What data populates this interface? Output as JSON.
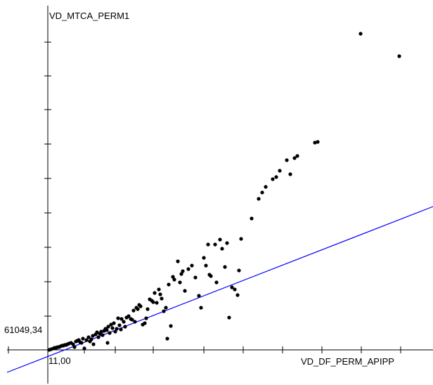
{
  "chart_data": {
    "type": "scatter",
    "xlabel": "VD_DF_PERM_APIPP",
    "ylabel": "VD_MTCA_PERM1",
    "x_origin_label": "11,00",
    "y_origin_label": "61049,34",
    "regression_line": true,
    "grid": false,
    "colors": {
      "points": "#000000",
      "regression": "#0000ff",
      "axes": "#000000"
    },
    "points": [
      [
        2,
        0
      ],
      [
        5,
        1
      ],
      [
        8,
        2
      ],
      [
        10,
        3
      ],
      [
        12,
        3
      ],
      [
        14,
        4
      ],
      [
        16,
        4
      ],
      [
        18,
        5
      ],
      [
        20,
        6
      ],
      [
        22,
        6
      ],
      [
        24,
        7
      ],
      [
        26,
        7
      ],
      [
        28,
        8
      ],
      [
        30,
        9
      ],
      [
        33,
        10
      ],
      [
        36,
        8
      ],
      [
        38,
        4
      ],
      [
        40,
        12
      ],
      [
        42,
        13
      ],
      [
        44,
        14
      ],
      [
        46,
        11
      ],
      [
        48,
        10
      ],
      [
        50,
        16
      ],
      [
        52,
        2
      ],
      [
        55,
        14
      ],
      [
        58,
        18
      ],
      [
        60,
        12
      ],
      [
        62,
        15
      ],
      [
        64,
        20
      ],
      [
        65,
        8
      ],
      [
        68,
        22
      ],
      [
        70,
        25
      ],
      [
        72,
        18
      ],
      [
        74,
        23
      ],
      [
        76,
        26
      ],
      [
        78,
        21
      ],
      [
        80,
        27
      ],
      [
        82,
        30
      ],
      [
        84,
        28
      ],
      [
        85,
        10
      ],
      [
        86,
        33
      ],
      [
        88,
        24
      ],
      [
        90,
        36
      ],
      [
        92,
        31
      ],
      [
        94,
        38
      ],
      [
        96,
        26
      ],
      [
        98,
        30
      ],
      [
        100,
        45
      ],
      [
        102,
        35
      ],
      [
        104,
        29
      ],
      [
        105,
        44
      ],
      [
        108,
        40
      ],
      [
        110,
        33
      ],
      [
        112,
        46
      ],
      [
        115,
        48
      ],
      [
        118,
        44
      ],
      [
        120,
        43
      ],
      [
        122,
        56
      ],
      [
        124,
        40
      ],
      [
        126,
        60
      ],
      [
        128,
        58
      ],
      [
        130,
        64
      ],
      [
        132,
        62
      ],
      [
        135,
        36
      ],
      [
        138,
        38
      ],
      [
        140,
        45
      ],
      [
        142,
        58
      ],
      [
        145,
        72
      ],
      [
        148,
        70
      ],
      [
        150,
        68
      ],
      [
        152,
        81
      ],
      [
        155,
        67
      ],
      [
        158,
        86
      ],
      [
        160,
        79
      ],
      [
        162,
        73
      ],
      [
        165,
        55
      ],
      [
        168,
        60
      ],
      [
        170,
        16
      ],
      [
        172,
        93
      ],
      [
        175,
        34
      ],
      [
        178,
        104
      ],
      [
        180,
        100
      ],
      [
        185,
        126
      ],
      [
        188,
        96
      ],
      [
        190,
        108
      ],
      [
        192,
        112
      ],
      [
        195,
        84
      ],
      [
        200,
        115
      ],
      [
        205,
        120
      ],
      [
        210,
        103
      ],
      [
        215,
        77
      ],
      [
        218,
        60
      ],
      [
        222,
        131
      ],
      [
        225,
        120
      ],
      [
        228,
        150
      ],
      [
        230,
        107
      ],
      [
        232,
        105
      ],
      [
        238,
        150
      ],
      [
        240,
        96
      ],
      [
        245,
        157
      ],
      [
        248,
        144
      ],
      [
        252,
        118
      ],
      [
        255,
        152
      ],
      [
        258,
        46
      ],
      [
        262,
        89
      ],
      [
        266,
        86
      ],
      [
        270,
        78
      ],
      [
        272,
        113
      ],
      [
        275,
        158
      ],
      [
        290,
        187
      ],
      [
        300,
        215
      ],
      [
        305,
        224
      ],
      [
        310,
        232
      ],
      [
        320,
        243
      ],
      [
        325,
        246
      ],
      [
        330,
        255
      ],
      [
        340,
        270
      ],
      [
        345,
        250
      ],
      [
        351,
        273
      ],
      [
        355,
        276
      ],
      [
        380,
        295
      ],
      [
        384,
        296
      ],
      [
        445,
        450
      ],
      [
        500,
        418
      ]
    ],
    "points_note_units": "arbitrary plot units"
  }
}
